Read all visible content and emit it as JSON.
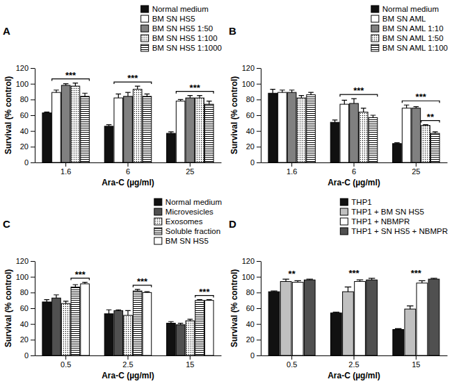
{
  "chart_data": [
    {
      "type": "bar",
      "title": "A",
      "x_label": "Ara-C (µg/ml)",
      "y_label": "Survival (% control)",
      "categories": [
        "1.6",
        "6",
        "25"
      ],
      "series": [
        {
          "name": "Normal medium",
          "color": "#111111",
          "values": [
            63,
            46,
            37
          ],
          "errors": [
            1,
            2,
            2
          ]
        },
        {
          "name": "BM SN HS5",
          "color": "#ffffff",
          "values": [
            89,
            82,
            78
          ],
          "errors": [
            3,
            5,
            2
          ]
        },
        {
          "name": "BM SN HS5 1:50",
          "color": "#808080",
          "values": [
            98,
            84,
            82
          ],
          "errors": [
            2,
            5,
            3
          ]
        },
        {
          "name": "BM SN HS5 1:100",
          "color": "#ffffff",
          "marker": "dots",
          "values": [
            97,
            93,
            82
          ],
          "errors": [
            4,
            4,
            3
          ]
        },
        {
          "name": "BM SN HS5 1:1000",
          "color": "#ffffff",
          "marker": "stripes",
          "values": [
            84,
            84,
            74
          ],
          "errors": [
            4,
            3,
            4
          ]
        }
      ],
      "ylim": [
        0,
        120
      ],
      "yticks": [
        0,
        20,
        40,
        60,
        80,
        100,
        120
      ],
      "legend": "top-right",
      "annotations": [
        {
          "category": "1.6",
          "from": "BM SN HS5",
          "to": "BM SN HS5 1:1000",
          "text": "***"
        },
        {
          "category": "6",
          "from": "BM SN HS5",
          "to": "BM SN HS5 1:1000",
          "text": "***"
        },
        {
          "category": "25",
          "from": "BM SN HS5",
          "to": "BM SN HS5 1:1000",
          "text": "***"
        }
      ]
    },
    {
      "type": "bar",
      "title": "B",
      "x_label": "Ara-C (µg/ml)",
      "y_label": "Survival (% control)",
      "categories": [
        "1.6",
        "6",
        "25"
      ],
      "series": [
        {
          "name": "Normal medium",
          "color": "#111111",
          "values": [
            88,
            51,
            24
          ],
          "errors": [
            5,
            3,
            1
          ]
        },
        {
          "name": "BM SN AML",
          "color": "#ffffff",
          "values": [
            89,
            74,
            69
          ],
          "errors": [
            3,
            5,
            4
          ]
        },
        {
          "name": "BM SN AML 1:10",
          "color": "#808080",
          "values": [
            89,
            75,
            69
          ],
          "errors": [
            3,
            6,
            2
          ]
        },
        {
          "name": "BM SN AML 1:50",
          "color": "#ffffff",
          "marker": "dots",
          "values": [
            82,
            64,
            47
          ],
          "errors": [
            3,
            5,
            1
          ]
        },
        {
          "name": "BM SN AML 1:100",
          "color": "#ffffff",
          "marker": "stripes",
          "values": [
            86,
            57,
            37
          ],
          "errors": [
            3,
            3,
            2
          ]
        }
      ],
      "ylim": [
        0,
        120
      ],
      "yticks": [
        0,
        20,
        40,
        60,
        80,
        100,
        120
      ],
      "legend": "top-right",
      "annotations": [
        {
          "category": "6",
          "from": "BM SN AML",
          "to": "BM SN AML 1:100",
          "text": "***"
        },
        {
          "category": "25",
          "from": "BM SN AML",
          "to": "BM SN AML 1:100",
          "text": "***"
        },
        {
          "category": "25",
          "from": "BM SN AML 1:50",
          "to": "BM SN AML 1:100",
          "text": "**"
        }
      ]
    },
    {
      "type": "bar",
      "title": "C",
      "x_label": "Ara-C (µg/ml)",
      "y_label": "Survival (% control)",
      "categories": [
        "0.5",
        "2.5",
        "15"
      ],
      "series": [
        {
          "name": "Normal medium",
          "color": "#111111",
          "values": [
            68,
            53,
            41
          ],
          "errors": [
            3,
            5,
            2
          ]
        },
        {
          "name": "Microvesicles",
          "color": "#505050",
          "values": [
            73,
            57,
            39
          ],
          "errors": [
            4,
            1,
            2
          ]
        },
        {
          "name": "Exosomes",
          "color": "#ffffff",
          "marker": "dots",
          "values": [
            66,
            51,
            44
          ],
          "errors": [
            3,
            6,
            2
          ]
        },
        {
          "name": "Soluble fraction",
          "color": "#ffffff",
          "marker": "stripes",
          "values": [
            87,
            82,
            70
          ],
          "errors": [
            3,
            2,
            1
          ]
        },
        {
          "name": "BM SN HS5",
          "color": "#ffffff",
          "values": [
            91,
            80,
            70
          ],
          "errors": [
            2,
            1,
            1
          ]
        }
      ],
      "ylim": [
        0,
        120
      ],
      "yticks": [
        0,
        20,
        40,
        60,
        80,
        100,
        120
      ],
      "legend": "top-right",
      "annotations": [
        {
          "category": "0.5",
          "from": "Soluble fraction",
          "to": "BM SN HS5",
          "text": "***"
        },
        {
          "category": "2.5",
          "from": "Soluble fraction",
          "to": "BM SN HS5",
          "text": "***"
        },
        {
          "category": "15",
          "from": "Soluble fraction",
          "to": "BM SN HS5",
          "text": "***"
        }
      ]
    },
    {
      "type": "bar",
      "title": "D",
      "x_label": "Ara-C (µg/ml)",
      "y_label": "Survival (% control)",
      "categories": [
        "0.5",
        "2.5",
        "15"
      ],
      "series": [
        {
          "name": "THP1",
          "color": "#111111",
          "values": [
            81,
            54,
            33
          ],
          "errors": [
            1,
            1,
            1
          ]
        },
        {
          "name": "THP1 + BM SN HS5",
          "color": "#c0c0c0",
          "values": [
            94,
            81,
            59
          ],
          "errors": [
            3,
            6,
            4
          ]
        },
        {
          "name": "THP1 + NBMPR",
          "color": "#ffffff",
          "values": [
            93,
            94,
            92
          ],
          "errors": [
            2,
            2,
            3
          ]
        },
        {
          "name": "THP1 + SN HS5 + NBMPR",
          "color": "#505050",
          "values": [
            96,
            96,
            97
          ],
          "errors": [
            1,
            2,
            1
          ]
        }
      ],
      "ylim": [
        0,
        120
      ],
      "yticks": [
        0,
        20,
        40,
        60,
        80,
        100,
        120
      ],
      "legend": "top-right",
      "annotations": [
        {
          "category": "0.5",
          "text": "**"
        },
        {
          "category": "2.5",
          "text": "***"
        },
        {
          "category": "15",
          "text": "***"
        }
      ]
    }
  ]
}
